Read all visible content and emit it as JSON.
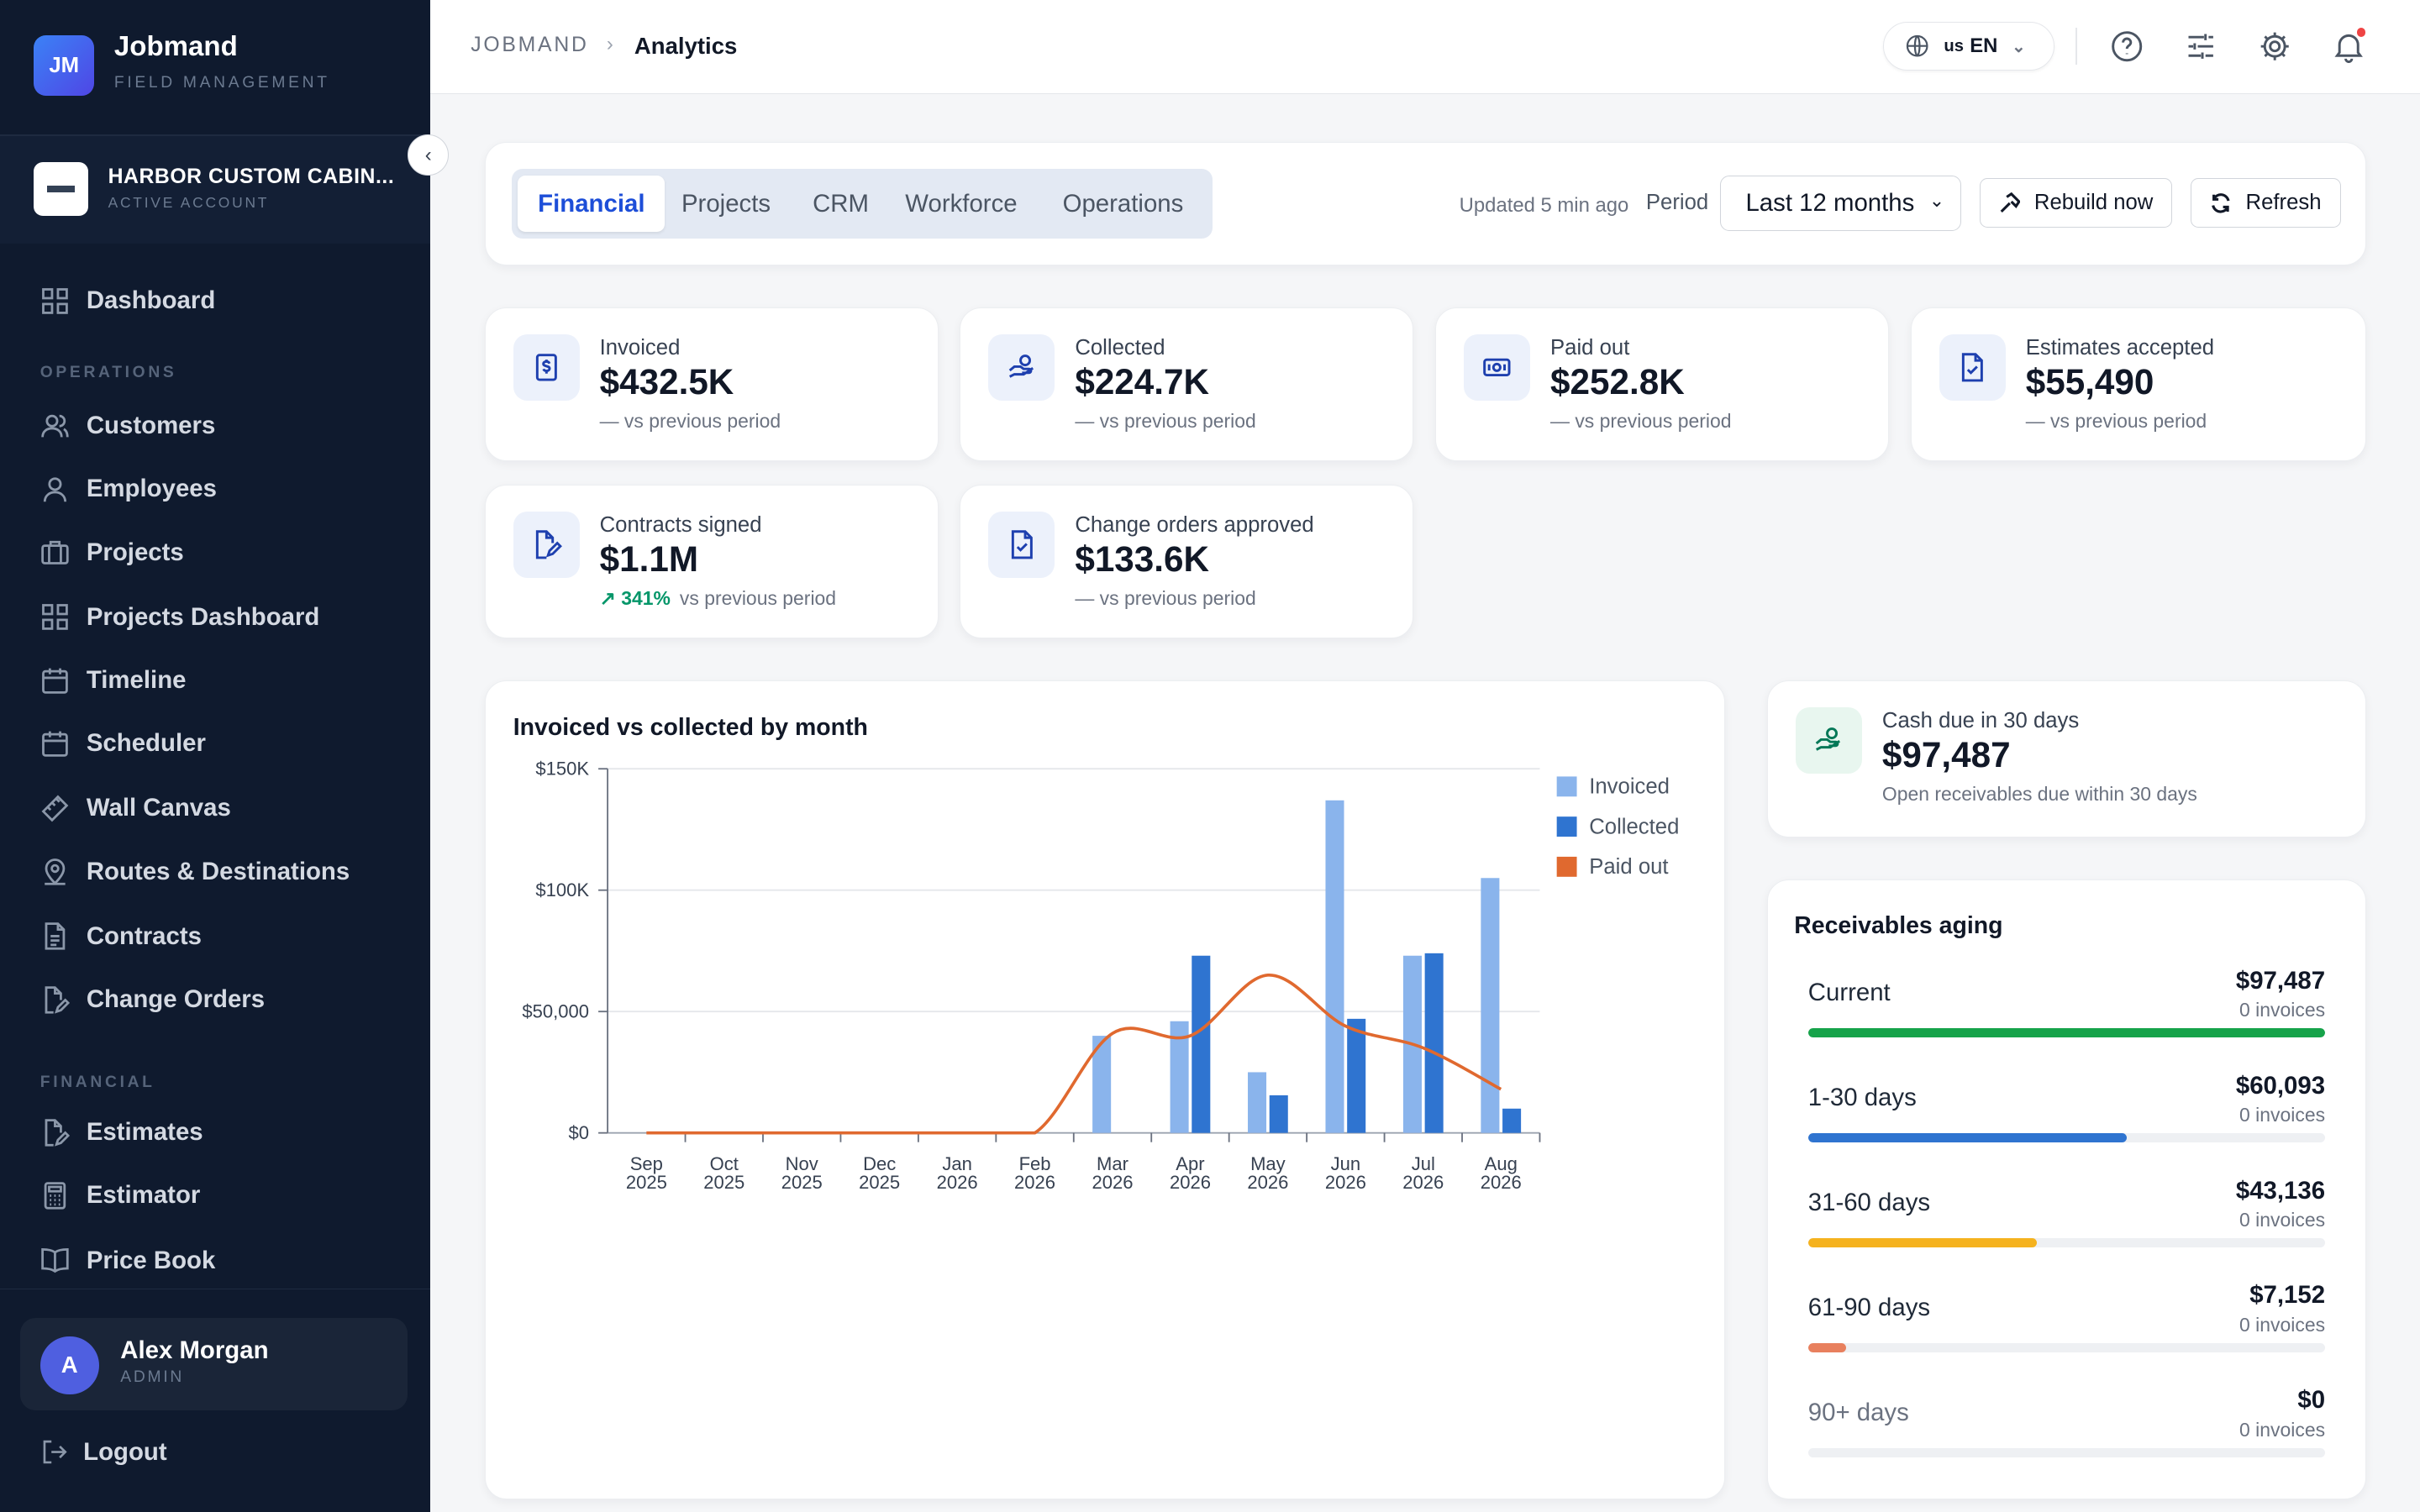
{
  "brand": {
    "initials": "JM",
    "name": "Jobmand",
    "sub": "FIELD MANAGEMENT"
  },
  "account": {
    "name": "HARBOR CUSTOM CABIN...",
    "role": "ACTIVE ACCOUNT"
  },
  "nav": {
    "dashboard": "Dashboard",
    "operations_label": "OPERATIONS",
    "operations": [
      "Customers",
      "Employees",
      "Projects",
      "Projects Dashboard",
      "Timeline",
      "Scheduler",
      "Wall Canvas",
      "Routes & Destinations",
      "Contracts",
      "Change Orders"
    ],
    "financial_label": "FINANCIAL",
    "financial": [
      "Estimates",
      "Estimator",
      "Price Book"
    ]
  },
  "user": {
    "initial": "A",
    "name": "Alex Morgan",
    "role": "ADMIN"
  },
  "logout": "Logout",
  "header": {
    "crumb_root": "JOBMAND",
    "crumb_sep": "›",
    "crumb_current": "Analytics",
    "lang_flag": "us",
    "lang": "EN"
  },
  "toolbar": {
    "tabs": [
      "Financial",
      "Projects",
      "CRM",
      "Workforce",
      "Operations"
    ],
    "active_tab": "Financial",
    "updated": "Updated 5 min ago",
    "period_label": "Period",
    "period_value": "Last 12 months",
    "rebuild": "Rebuild now",
    "refresh": "Refresh"
  },
  "kpis": [
    {
      "label": "Invoiced",
      "value": "$432.5K",
      "delta": "— vs previous period",
      "icon": "dollar-doc-icon"
    },
    {
      "label": "Collected",
      "value": "$224.7K",
      "delta": "— vs previous period",
      "icon": "hand-coins-icon"
    },
    {
      "label": "Paid out",
      "value": "$252.8K",
      "delta": "— vs previous period",
      "icon": "banknote-icon"
    },
    {
      "label": "Estimates accepted",
      "value": "$55,490",
      "delta": "— vs previous period",
      "icon": "doc-check-icon"
    },
    {
      "label": "Contracts signed",
      "value": "$1.1M",
      "delta_up": "↗ 341%",
      "delta": "vs previous period",
      "icon": "doc-sign-icon"
    },
    {
      "label": "Change orders approved",
      "value": "$133.6K",
      "delta": "— vs previous period",
      "icon": "doc-check-icon"
    }
  ],
  "chart_data": {
    "type": "bar",
    "title": "Invoiced vs collected by month",
    "categories": [
      "Sep 2025",
      "Oct 2025",
      "Nov 2025",
      "Dec 2025",
      "Jan 2026",
      "Feb 2026",
      "Mar 2026",
      "Apr 2026",
      "May 2026",
      "Jun 2026",
      "Jul 2026",
      "Aug 2026"
    ],
    "series": [
      {
        "name": "Invoiced",
        "type": "bar",
        "color": "#8ab4ec",
        "values": [
          0,
          0,
          0,
          0,
          0,
          0,
          40000,
          46000,
          25000,
          137000,
          73000,
          105000
        ]
      },
      {
        "name": "Collected",
        "type": "bar",
        "color": "#2f74d0",
        "values": [
          0,
          0,
          0,
          0,
          0,
          0,
          0,
          73000,
          15500,
          47000,
          74000,
          10000
        ]
      },
      {
        "name": "Paid out",
        "type": "line",
        "color": "#e0692f",
        "values": [
          0,
          0,
          0,
          0,
          0,
          0,
          41000,
          40000,
          65000,
          44000,
          35000,
          18000
        ]
      }
    ],
    "ylim": [
      0,
      150000
    ],
    "yticks": [
      "$0",
      "$50,000",
      "$100K",
      "$150K"
    ],
    "ytick_values": [
      0,
      50000,
      100000,
      150000
    ],
    "legend": "right",
    "grid": true
  },
  "cash_due": {
    "label": "Cash due in 30 days",
    "value": "$97,487",
    "sub": "Open receivables due within 30 days"
  },
  "aging": {
    "title": "Receivables aging",
    "rows": [
      {
        "name": "Current",
        "amount": "$97,487",
        "count": "0 invoices",
        "share": 1.0,
        "color": "#16a34a"
      },
      {
        "name": "1-30 days",
        "amount": "$60,093",
        "count": "0 invoices",
        "share": 0.616,
        "color": "#2f74d0"
      },
      {
        "name": "31-60 days",
        "amount": "$43,136",
        "count": "0 invoices",
        "share": 0.442,
        "color": "#f5b21e"
      },
      {
        "name": "61-90 days",
        "amount": "$7,152",
        "count": "0 invoices",
        "share": 0.073,
        "color": "#e8805e"
      },
      {
        "name": "90+ days",
        "amount": "$0",
        "count": "0 invoices",
        "share": 0,
        "color": "#9ca3af"
      }
    ]
  }
}
